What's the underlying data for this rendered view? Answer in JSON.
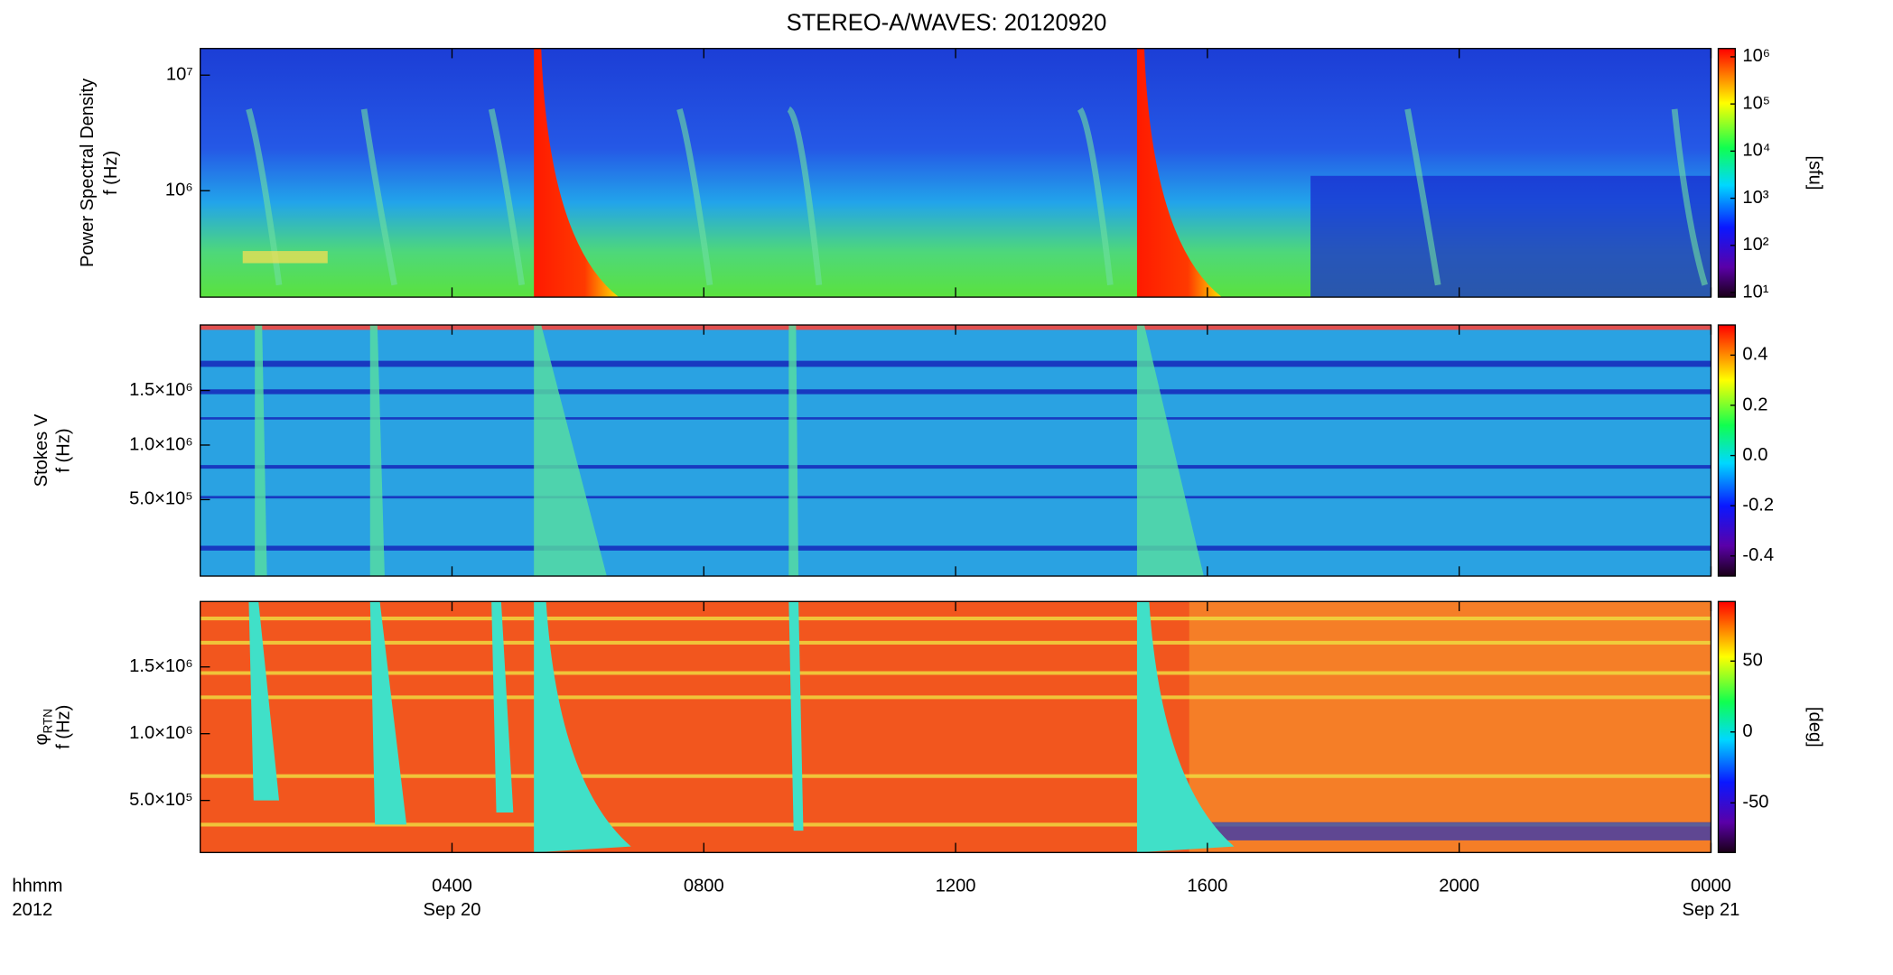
{
  "title": "STEREO-A/WAVES: 20120920",
  "x_axis": {
    "xlim": [
      0,
      24
    ],
    "xticks": [
      {
        "value": 4,
        "label": "0400"
      },
      {
        "value": 8,
        "label": "0800"
      },
      {
        "value": 12,
        "label": "1200"
      },
      {
        "value": 16,
        "label": "1600"
      },
      {
        "value": 20,
        "label": "2000"
      },
      {
        "value": 24,
        "label": "0000"
      }
    ],
    "label": [
      "hhmm",
      "2012"
    ],
    "dates": [
      {
        "value": 4,
        "label": "Sep 20"
      },
      {
        "value": 24,
        "label": "Sep 21"
      }
    ]
  },
  "panels": [
    {
      "ylabel": "Power Spectral Density",
      "ylabel_unit": "f (Hz)",
      "ylog": true,
      "ylim": [
        120000,
        17000000
      ],
      "yticks": [
        {
          "value": 1000000,
          "label": "10⁶"
        },
        {
          "value": 10000000,
          "label": "10⁷"
        }
      ],
      "colorbar": {
        "log": true,
        "lim": [
          8,
          1500000
        ],
        "label": "[sfu]",
        "ticks": [
          {
            "value": 10,
            "label": "10¹"
          },
          {
            "value": 100,
            "label": "10²"
          },
          {
            "value": 1000,
            "label": "10³"
          },
          {
            "value": 10000,
            "label": "10⁴"
          },
          {
            "value": 100000,
            "label": "10⁵"
          },
          {
            "value": 1000000,
            "label": "10⁶"
          }
        ]
      }
    },
    {
      "ylabel": "Stokes V",
      "ylabel_unit": "f (Hz)",
      "ylog": false,
      "ylim": [
        -200000,
        2100000
      ],
      "yticks": [
        {
          "value": 500000,
          "label": "5.0×10⁵"
        },
        {
          "value": 1000000,
          "label": "1.0×10⁶"
        },
        {
          "value": 1500000,
          "label": "1.5×10⁶"
        }
      ],
      "colorbar": {
        "log": false,
        "lim": [
          -0.48,
          0.52
        ],
        "ticks": [
          -0.4,
          -0.2,
          {
            "value": 0,
            "label": "0.0"
          },
          0.2,
          0.4
        ]
      }
    },
    {
      "ylabel": "φ",
      "ylabel_sub": "RTN",
      "ylabel_unit": "f (Hz)",
      "ylog": false,
      "ylim": [
        110000,
        1990000
      ],
      "yticks": [
        {
          "value": 500000,
          "label": "5.0×10⁵"
        },
        {
          "value": 1000000,
          "label": "1.0×10⁶"
        },
        {
          "value": 1500000,
          "label": "1.5×10⁶"
        }
      ],
      "colorbar": {
        "log": false,
        "lim": [
          -85,
          92
        ],
        "label": "[deg]",
        "ticks": [
          -50,
          0,
          50
        ]
      }
    }
  ]
}
